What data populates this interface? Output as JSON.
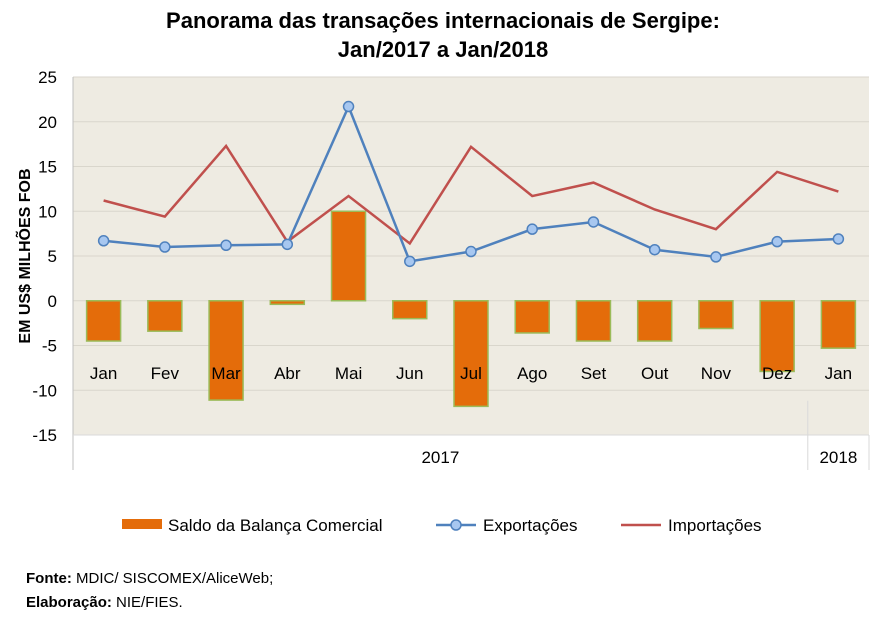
{
  "chart_data": {
    "type": "bar+line",
    "title_line1": "Panorama das transações internacionais de Sergipe:",
    "title_line2": "Jan/2017 a Jan/2018",
    "ylabel": "EM US$ MILHÕES FOB",
    "ylim": [
      -15,
      25
    ],
    "yticks": [
      -15,
      -10,
      -5,
      0,
      5,
      10,
      15,
      20,
      25
    ],
    "grid": true,
    "categories": [
      "Jan",
      "Fev",
      "Mar",
      "Abr",
      "Mai",
      "Jun",
      "Jul",
      "Ago",
      "Set",
      "Out",
      "Nov",
      "Dez",
      "Jan"
    ],
    "year_groups": [
      {
        "label": "2017",
        "count": 12
      },
      {
        "label": "2018",
        "count": 1
      }
    ],
    "series": [
      {
        "name": "Saldo da Balança Comercial",
        "type": "bar",
        "color": "#E46C0A",
        "values": [
          -4.5,
          -3.4,
          -11.1,
          -0.4,
          10.0,
          -2.0,
          -11.8,
          -3.6,
          -4.5,
          -4.5,
          -3.1,
          -7.9,
          -5.3
        ]
      },
      {
        "name": "Exportações",
        "type": "line-marker",
        "color": "#4F81BD",
        "values": [
          6.7,
          6.0,
          6.2,
          6.3,
          21.7,
          4.4,
          5.5,
          8.0,
          8.8,
          5.7,
          4.9,
          6.6,
          6.9
        ]
      },
      {
        "name": "Importações",
        "type": "line",
        "color": "#C0504D",
        "values": [
          11.2,
          9.4,
          17.3,
          6.6,
          11.7,
          6.4,
          17.2,
          11.7,
          13.2,
          10.2,
          8.0,
          14.4,
          12.2
        ]
      }
    ],
    "legend_position": "bottom"
  },
  "colors": {
    "plot_bg": "#EEEBE2",
    "grid": "#D9D6CC",
    "bar_border": "#9BBB59",
    "marker_fill": "#A7C7F0"
  },
  "footer": {
    "source_label": "Fonte:",
    "source_text": " MDIC/ SISCOMEX/AliceWeb;",
    "elab_label": "Elaboração:",
    "elab_text": " NIE/FIES."
  }
}
